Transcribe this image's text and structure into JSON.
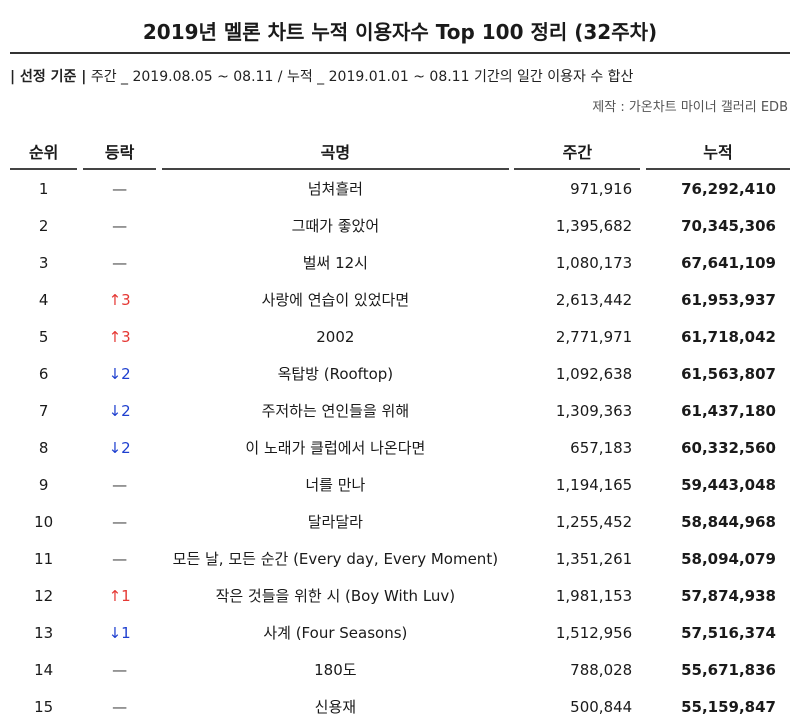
{
  "title": "2019년 멜론 차트 누적 이용자수 Top 100 정리 (32주차)",
  "criteria": {
    "label": "| 선정 기준 |",
    "text": " 주간 _ 2019.08.05 ~ 08.11 / 누적 _ 2019.01.01 ~ 08.11 기간의 일간 이용자 수 합산"
  },
  "source": "제작 : 가온차트 마이너 갤러리 EDB",
  "headers": {
    "rank": "순위",
    "change": "등락",
    "song": "곡명",
    "weekly": "주간",
    "total": "누적"
  },
  "rows": [
    {
      "rank": "1",
      "change": "—",
      "dir": "same",
      "song": "넘쳐흘러",
      "weekly": "971,916",
      "total": "76,292,410"
    },
    {
      "rank": "2",
      "change": "—",
      "dir": "same",
      "song": "그때가 좋았어",
      "weekly": "1,395,682",
      "total": "70,345,306"
    },
    {
      "rank": "3",
      "change": "—",
      "dir": "same",
      "song": "벌써 12시",
      "weekly": "1,080,173",
      "total": "67,641,109"
    },
    {
      "rank": "4",
      "change": "↑3",
      "dir": "up",
      "song": "사랑에 연습이 있었다면",
      "weekly": "2,613,442",
      "total": "61,953,937"
    },
    {
      "rank": "5",
      "change": "↑3",
      "dir": "up",
      "song": "2002",
      "weekly": "2,771,971",
      "total": "61,718,042"
    },
    {
      "rank": "6",
      "change": "↓2",
      "dir": "down",
      "song": "옥탑방 (Rooftop)",
      "weekly": "1,092,638",
      "total": "61,563,807"
    },
    {
      "rank": "7",
      "change": "↓2",
      "dir": "down",
      "song": "주저하는 연인들을 위해",
      "weekly": "1,309,363",
      "total": "61,437,180"
    },
    {
      "rank": "8",
      "change": "↓2",
      "dir": "down",
      "song": "이 노래가 클럽에서 나온다면",
      "weekly": "657,183",
      "total": "60,332,560"
    },
    {
      "rank": "9",
      "change": "—",
      "dir": "same",
      "song": "너를 만나",
      "weekly": "1,194,165",
      "total": "59,443,048"
    },
    {
      "rank": "10",
      "change": "—",
      "dir": "same",
      "song": "달라달라",
      "weekly": "1,255,452",
      "total": "58,844,968"
    },
    {
      "rank": "11",
      "change": "—",
      "dir": "same",
      "song": "모든 날, 모든 순간 (Every day, Every Moment)",
      "weekly": "1,351,261",
      "total": "58,094,079"
    },
    {
      "rank": "12",
      "change": "↑1",
      "dir": "up",
      "song": "작은 것들을 위한 시 (Boy With Luv)",
      "weekly": "1,981,153",
      "total": "57,874,938"
    },
    {
      "rank": "13",
      "change": "↓1",
      "dir": "down",
      "song": "사계 (Four Seasons)",
      "weekly": "1,512,956",
      "total": "57,516,374"
    },
    {
      "rank": "14",
      "change": "—",
      "dir": "same",
      "song": "180도",
      "weekly": "788,028",
      "total": "55,671,836"
    },
    {
      "rank": "15",
      "change": "—",
      "dir": "same",
      "song": "신용재",
      "weekly": "500,844",
      "total": "55,159,847"
    }
  ]
}
